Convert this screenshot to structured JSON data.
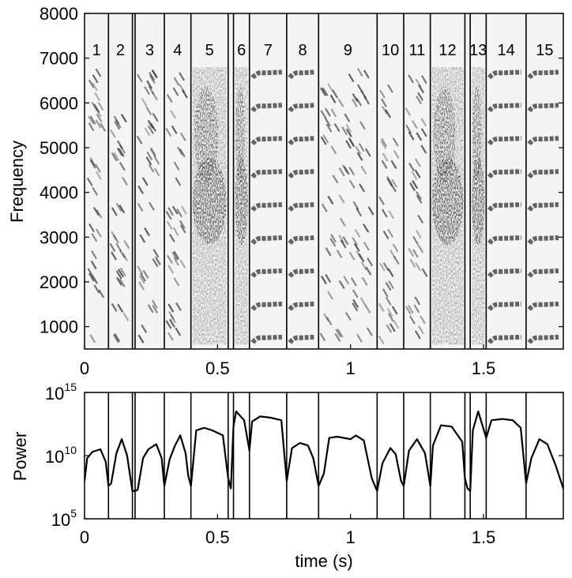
{
  "chart_data": [
    {
      "type": "heatmap",
      "ylabel": "Frequency",
      "xlim": [
        0,
        1.8
      ],
      "ylim": [
        500,
        8000
      ],
      "x_ticks": [
        "0",
        "0.5",
        "1",
        "1.5"
      ],
      "x_tick_values": [
        0,
        0.5,
        1,
        1.5
      ],
      "y_ticks": [
        "1000",
        "2000",
        "3000",
        "4000",
        "5000",
        "6000",
        "7000",
        "8000"
      ],
      "y_tick_values": [
        1000,
        2000,
        3000,
        4000,
        5000,
        6000,
        7000,
        8000
      ],
      "segment_boundaries": [
        0.09,
        0.18,
        0.19,
        0.3,
        0.4,
        0.54,
        0.56,
        0.62,
        0.76,
        0.88,
        1.1,
        1.2,
        1.3,
        1.43,
        1.45,
        1.51,
        1.66
      ],
      "segments": [
        {
          "label": "1",
          "start": 0.0,
          "end": 0.09,
          "kind": "chirp"
        },
        {
          "label": "2",
          "start": 0.09,
          "end": 0.18,
          "kind": "chirp"
        },
        {
          "label": "3",
          "start": 0.19,
          "end": 0.3,
          "kind": "chirp"
        },
        {
          "label": "4",
          "start": 0.3,
          "end": 0.4,
          "kind": "chirp"
        },
        {
          "label": "5",
          "start": 0.4,
          "end": 0.54,
          "kind": "noise"
        },
        {
          "label": "6",
          "start": 0.56,
          "end": 0.62,
          "kind": "noise"
        },
        {
          "label": "7",
          "start": 0.62,
          "end": 0.76,
          "kind": "harmonic"
        },
        {
          "label": "8",
          "start": 0.76,
          "end": 0.88,
          "kind": "harmonic"
        },
        {
          "label": "9",
          "start": 0.88,
          "end": 1.1,
          "kind": "chirp"
        },
        {
          "label": "10",
          "start": 1.1,
          "end": 1.2,
          "kind": "chirp"
        },
        {
          "label": "11",
          "start": 1.2,
          "end": 1.3,
          "kind": "chirp"
        },
        {
          "label": "12",
          "start": 1.3,
          "end": 1.43,
          "kind": "noise"
        },
        {
          "label": "13",
          "start": 1.45,
          "end": 1.51,
          "kind": "noise"
        },
        {
          "label": "14",
          "start": 1.51,
          "end": 1.66,
          "kind": "harmonic"
        },
        {
          "label": "15",
          "start": 1.66,
          "end": 1.8,
          "kind": "harmonic"
        }
      ]
    },
    {
      "type": "line",
      "xlabel": "time (s)",
      "ylabel": "Power",
      "xlim": [
        0,
        1.8
      ],
      "yscale": "log",
      "ylim_log10": [
        5,
        15
      ],
      "x_ticks": [
        "0",
        "0.5",
        "1",
        "1.5"
      ],
      "x_tick_values": [
        0,
        0.5,
        1,
        1.5
      ],
      "y_ticks": [
        {
          "base": "10",
          "exp": "5",
          "value": 5
        },
        {
          "base": "10",
          "exp": "10",
          "value": 10
        },
        {
          "base": "10",
          "exp": "15",
          "value": 15
        }
      ],
      "segment_boundaries": [
        0.09,
        0.18,
        0.19,
        0.3,
        0.4,
        0.54,
        0.56,
        0.62,
        0.76,
        0.88,
        1.1,
        1.2,
        1.3,
        1.43,
        1.45,
        1.51,
        1.66
      ],
      "series": [
        {
          "x": [
            0.0,
            0.01,
            0.03,
            0.06,
            0.08,
            0.09,
            0.1,
            0.12,
            0.14,
            0.16,
            0.17,
            0.18,
            0.19,
            0.2,
            0.22,
            0.24,
            0.27,
            0.29,
            0.3,
            0.32,
            0.34,
            0.36,
            0.38,
            0.39,
            0.4,
            0.42,
            0.45,
            0.48,
            0.52,
            0.54,
            0.55,
            0.56,
            0.57,
            0.6,
            0.62,
            0.63,
            0.66,
            0.7,
            0.74,
            0.76,
            0.78,
            0.81,
            0.84,
            0.86,
            0.88,
            0.9,
            0.92,
            0.95,
            1.0,
            1.02,
            1.05,
            1.08,
            1.1,
            1.12,
            1.15,
            1.17,
            1.19,
            1.2,
            1.22,
            1.25,
            1.28,
            1.3,
            1.31,
            1.34,
            1.38,
            1.42,
            1.43,
            1.44,
            1.45,
            1.46,
            1.48,
            1.51,
            1.53,
            1.57,
            1.61,
            1.64,
            1.66,
            1.68,
            1.71,
            1.74,
            1.77,
            1.8
          ],
          "y_log10": [
            8.0,
            9.8,
            10.3,
            10.5,
            9.5,
            7.6,
            7.8,
            10.2,
            11.3,
            10.0,
            8.6,
            7.2,
            7.2,
            7.3,
            9.8,
            10.5,
            10.9,
            9.8,
            7.6,
            9.7,
            10.8,
            11.6,
            10.2,
            8.4,
            7.6,
            12.0,
            12.2,
            12.0,
            11.6,
            8.2,
            7.4,
            12.3,
            13.5,
            12.8,
            10.4,
            12.7,
            13.1,
            13.0,
            12.8,
            8.0,
            10.6,
            11.0,
            10.8,
            9.8,
            7.6,
            8.6,
            11.4,
            11.5,
            11.3,
            11.6,
            11.2,
            8.2,
            7.2,
            9.4,
            10.6,
            10.1,
            8.0,
            7.6,
            10.4,
            11.3,
            10.2,
            7.6,
            10.8,
            12.4,
            12.3,
            11.1,
            8.2,
            7.4,
            7.2,
            12.0,
            13.5,
            11.4,
            12.8,
            12.9,
            12.8,
            12.2,
            7.8,
            9.8,
            11.3,
            10.9,
            9.3,
            7.4
          ]
        }
      ]
    }
  ]
}
